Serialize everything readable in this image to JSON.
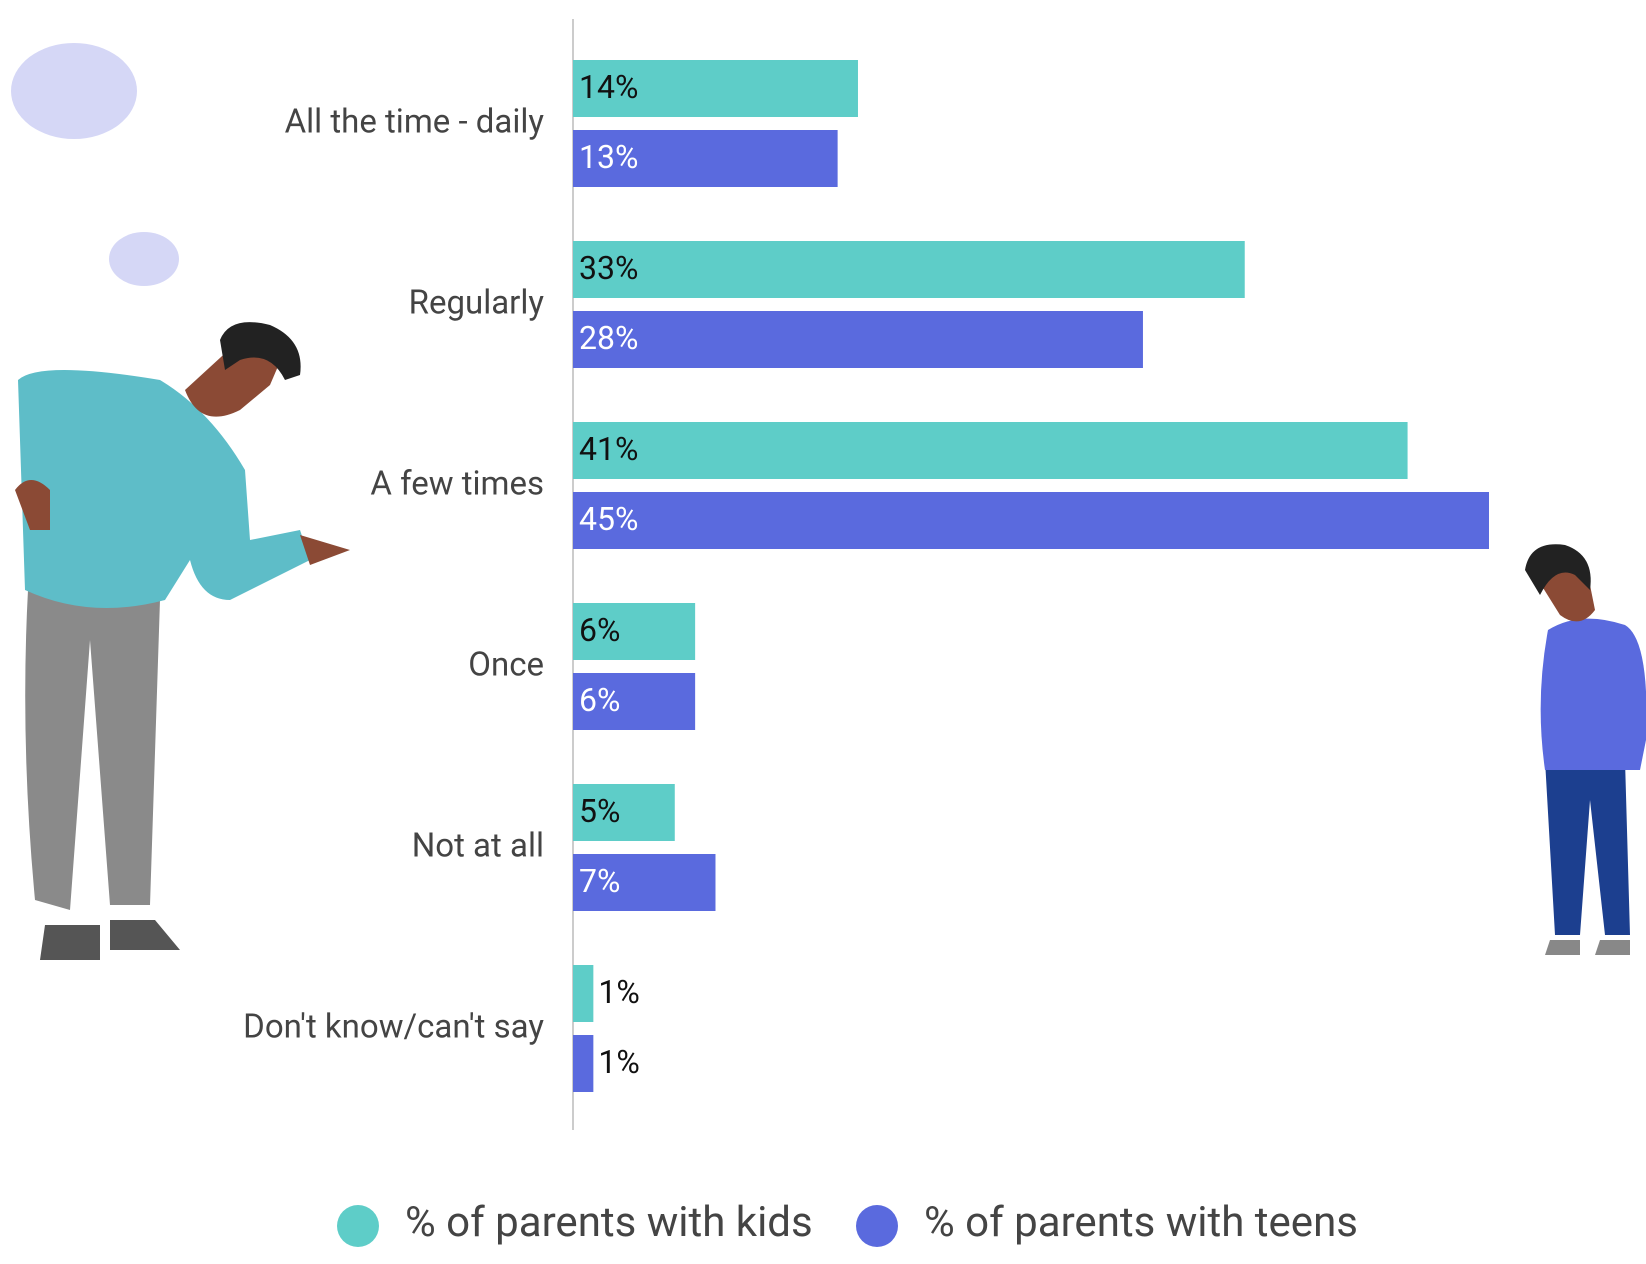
{
  "chart_data": {
    "type": "bar",
    "orientation": "horizontal",
    "categories": [
      "All the time - daily",
      "Regularly",
      "A few times",
      "Once",
      "Not at all",
      "Don't know/can't say"
    ],
    "series": [
      {
        "name": "% of parents with kids",
        "color": "#5ecdc8",
        "values": [
          14,
          33,
          41,
          6,
          5,
          1
        ],
        "value_labels": [
          "14%",
          "33%",
          "41%",
          "6%",
          "5%",
          "1%"
        ]
      },
      {
        "name": "% of parents with teens",
        "color": "#5a6ade",
        "values": [
          13,
          28,
          45,
          6,
          7,
          1
        ],
        "value_labels": [
          "13%",
          "28%",
          "45%",
          "6%",
          "7%",
          "1%"
        ]
      }
    ],
    "legend": "bottom"
  }
}
